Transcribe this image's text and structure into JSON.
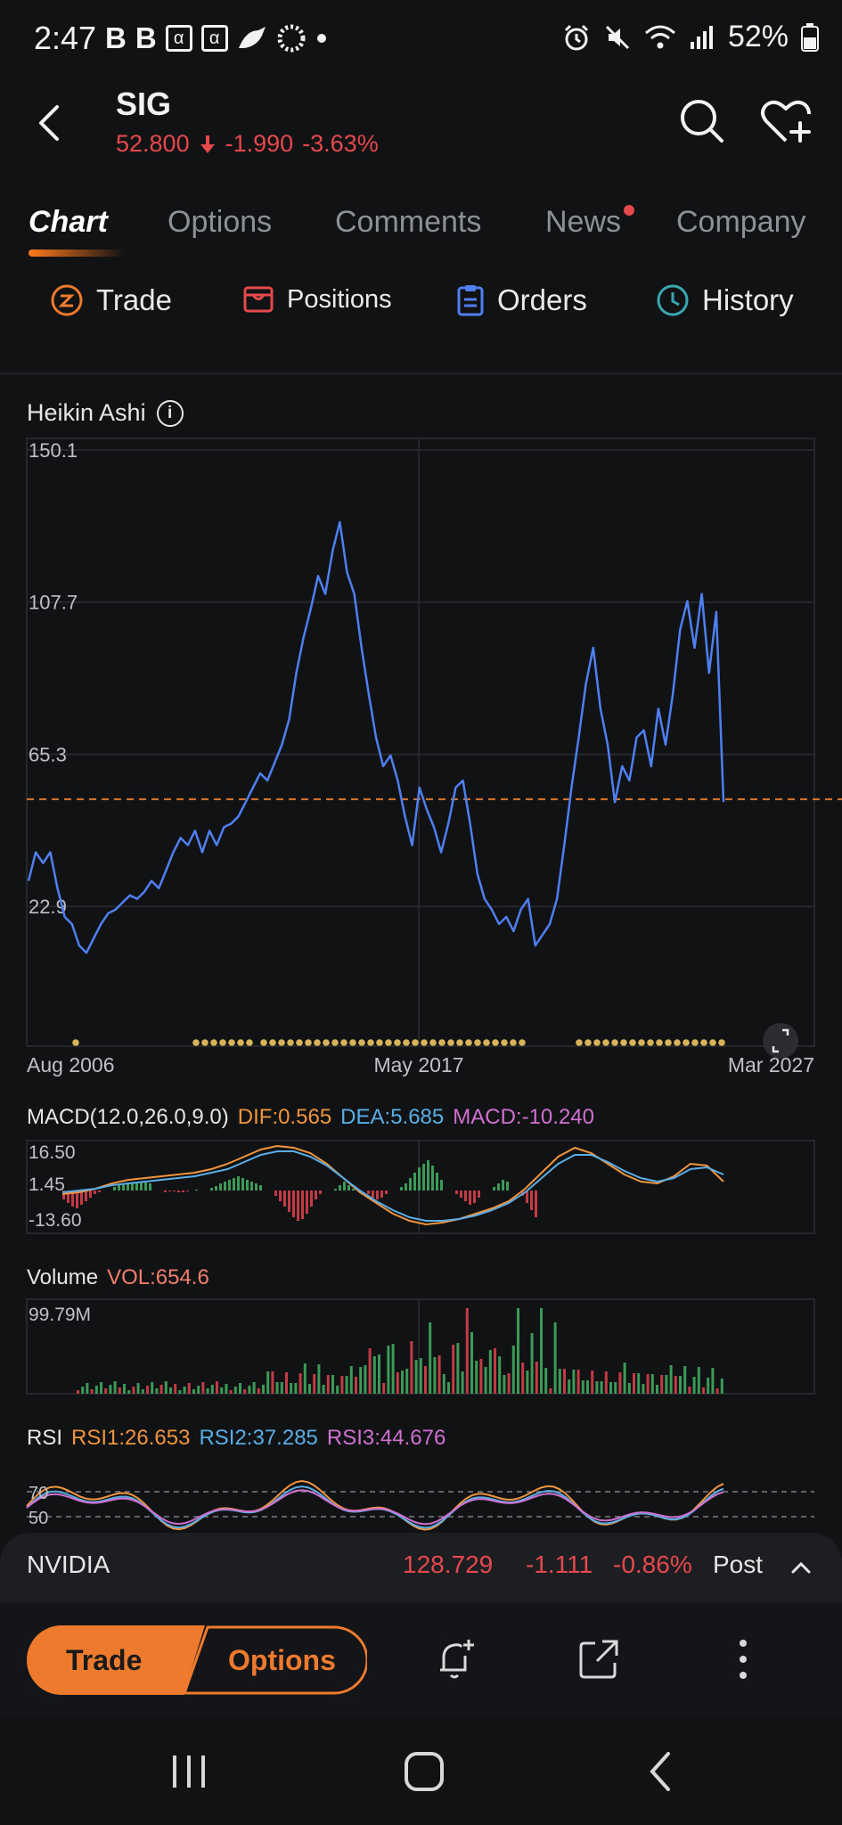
{
  "status_bar": {
    "time": "2:47",
    "left_icons": [
      "B",
      "B",
      "α",
      "α"
    ],
    "battery": "52%"
  },
  "header": {
    "symbol": "SIG",
    "price": "52.800",
    "change": "-1.990",
    "change_pct": "-3.63%"
  },
  "tabs": [
    {
      "label": "Chart",
      "active": true
    },
    {
      "label": "Options"
    },
    {
      "label": "Comments"
    },
    {
      "label": "News",
      "dot": true
    },
    {
      "label": "Company"
    }
  ],
  "actions": {
    "trade": "Trade",
    "positions": "Positions",
    "orders": "Orders",
    "history": "History"
  },
  "chart_data": {
    "type": "line",
    "title": "Heikin Ashi",
    "y_ticks": [
      "150.1",
      "107.7",
      "65.3",
      "22.9"
    ],
    "x_labels": [
      "Aug 2006",
      "May 2017",
      "Mar 2027"
    ],
    "ylim": [
      -20,
      150.1
    ],
    "reference_line": 52.8,
    "grid": true,
    "series": [
      {
        "values": [
          30,
          38,
          35,
          38,
          28,
          20,
          18,
          12,
          10,
          14,
          18,
          21,
          22,
          24,
          26,
          25,
          27,
          30,
          28,
          33,
          38,
          42,
          40,
          44,
          38,
          44,
          40,
          45,
          46,
          48,
          52,
          56,
          60,
          58,
          63,
          68,
          75,
          88,
          98,
          106,
          115,
          110,
          122,
          130,
          116,
          110,
          95,
          82,
          70,
          62,
          65,
          58,
          48,
          40,
          56,
          50,
          45,
          38,
          46,
          56,
          58,
          46,
          32,
          25,
          22,
          18,
          20,
          16,
          22,
          25,
          12,
          15,
          18,
          25,
          40,
          56,
          70,
          85,
          95,
          78,
          68,
          52,
          62,
          58,
          70,
          72,
          62,
          78,
          68,
          82,
          100,
          108,
          95,
          110,
          88,
          105,
          52
        ]
      }
    ]
  },
  "macd": {
    "label": "MACD(12.0,26.0,9.0)",
    "dif": "DIF:0.565",
    "dea": "DEA:5.685",
    "macd": "MACD:-10.240",
    "ticks": [
      "16.50",
      "1.45",
      "-13.60"
    ]
  },
  "volume": {
    "label": "Volume",
    "vol": "VOL:654.6",
    "max_tick": "99.79M"
  },
  "rsi": {
    "label": "RSI",
    "rsi1": "RSI1:26.653",
    "rsi2": "RSI2:37.285",
    "rsi3": "RSI3:44.676",
    "ticks": [
      "70",
      "50"
    ]
  },
  "floating_quote": {
    "symbol": "NVIDIA",
    "price": "128.729",
    "change": "-1.111",
    "change_pct": "-0.86%",
    "session": "Post"
  },
  "bottom_bar": {
    "trade": "Trade",
    "options": "Options"
  },
  "colors": {
    "accent": "#ee7a2e",
    "down": "#e5484d",
    "line": "#4f7ff0"
  }
}
